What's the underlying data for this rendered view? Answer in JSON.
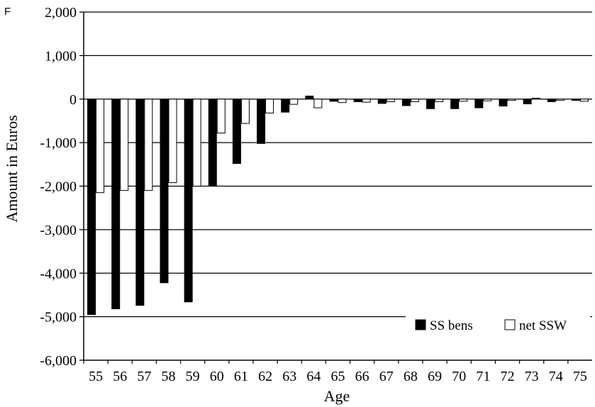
{
  "panel_label": "F",
  "chart_data": {
    "type": "bar",
    "title": "",
    "xlabel": "Age",
    "ylabel": "Amount in Euros",
    "ylim": [
      -6000,
      2000
    ],
    "yticks": [
      2000,
      1000,
      0,
      -1000,
      -2000,
      -3000,
      -4000,
      -5000,
      -6000
    ],
    "ytick_labels": [
      "2,000",
      "1,000",
      "0",
      "-1,000",
      "-2,000",
      "-3,000",
      "-4,000",
      "-5,000",
      "-6,000"
    ],
    "categories": [
      "55",
      "56",
      "57",
      "58",
      "59",
      "60",
      "61",
      "62",
      "63",
      "64",
      "65",
      "66",
      "67",
      "68",
      "69",
      "70",
      "71",
      "72",
      "73",
      "74",
      "75"
    ],
    "grid": true,
    "legend_position": "bottom-right",
    "series": [
      {
        "name": "SS bens",
        "color": "#000000",
        "values": [
          -4950,
          -4820,
          -4740,
          -4220,
          -4660,
          -2000,
          -1480,
          -1020,
          -300,
          70,
          -50,
          -60,
          -100,
          -150,
          -220,
          -220,
          -200,
          -160,
          -110,
          -60,
          -30
        ]
      },
      {
        "name": "net SSW",
        "color": "#ffffff",
        "values": [
          -2150,
          -2100,
          -2100,
          -1920,
          -2000,
          -780,
          -560,
          -320,
          -120,
          -200,
          -80,
          -70,
          -60,
          -60,
          -60,
          -50,
          -40,
          -30,
          20,
          -30,
          -50
        ]
      }
    ]
  }
}
